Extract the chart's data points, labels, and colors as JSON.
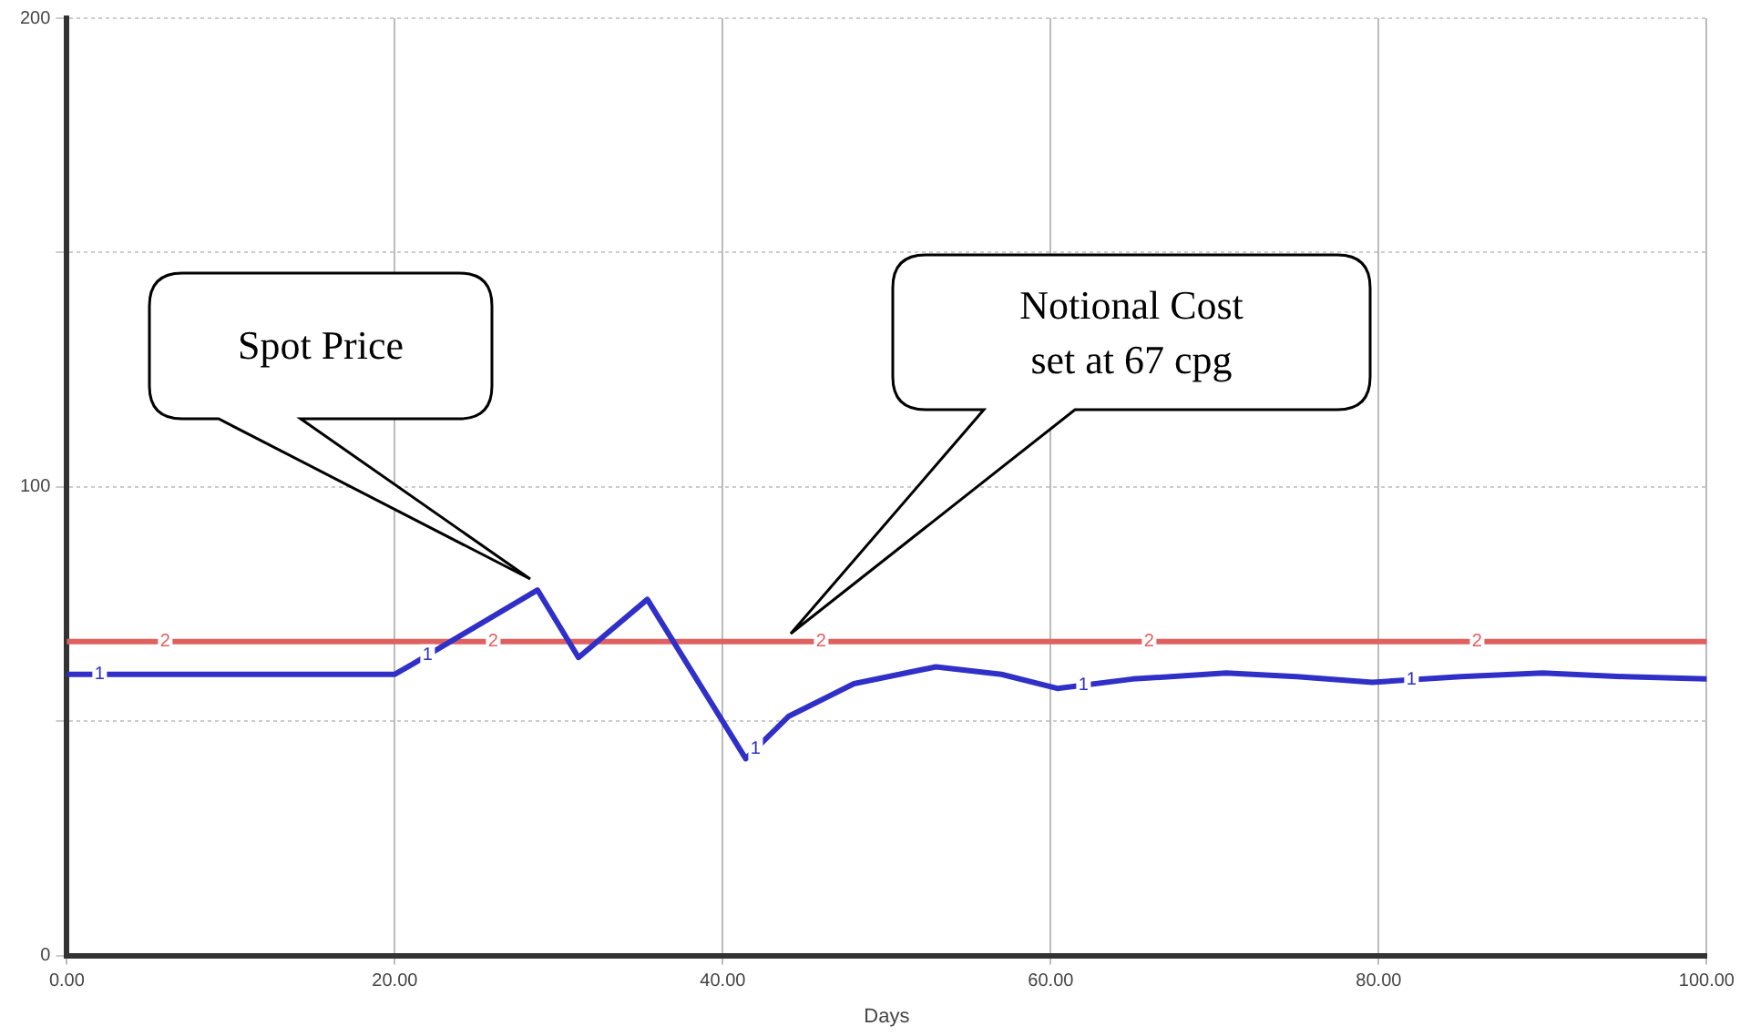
{
  "chart_data": {
    "type": "line",
    "xlabel": "Days",
    "xlim": [
      0,
      100
    ],
    "xticks": [
      {
        "value": 0,
        "label": "0.00"
      },
      {
        "value": 20,
        "label": "20.00"
      },
      {
        "value": 40,
        "label": "40.00"
      },
      {
        "value": 60,
        "label": "60.00"
      },
      {
        "value": 80,
        "label": "80.00"
      },
      {
        "value": 100,
        "label": "100.00"
      }
    ],
    "ylim": [
      0,
      200
    ],
    "yticks": [
      0,
      {
        "value": 50,
        "label": null
      },
      100,
      {
        "value": 150,
        "label": null
      },
      200
    ],
    "grid": true,
    "legend": false,
    "marker": "none",
    "line_style": "solid",
    "series": [
      {
        "name": "1",
        "color": "#3030c8",
        "x": [
          0,
          20,
          21,
          28.7,
          31.2,
          35.4,
          41.4,
          44,
          48,
          53,
          57,
          60.4,
          65,
          70.7,
          75,
          79.6,
          85,
          90,
          95,
          100
        ],
        "values": [
          60,
          60,
          62,
          78,
          63.6,
          76,
          42,
          51,
          58,
          61.6,
          60,
          57,
          59,
          60.3,
          59.5,
          58.3,
          59.5,
          60.3,
          59.5,
          59
        ]
      },
      {
        "name": "2",
        "color": "#e06060",
        "x": [
          0,
          100
        ],
        "values": [
          67,
          67
        ]
      }
    ],
    "annotations": [
      "Spot Price",
      "Notional Cost\nset at 67 cpg"
    ]
  }
}
